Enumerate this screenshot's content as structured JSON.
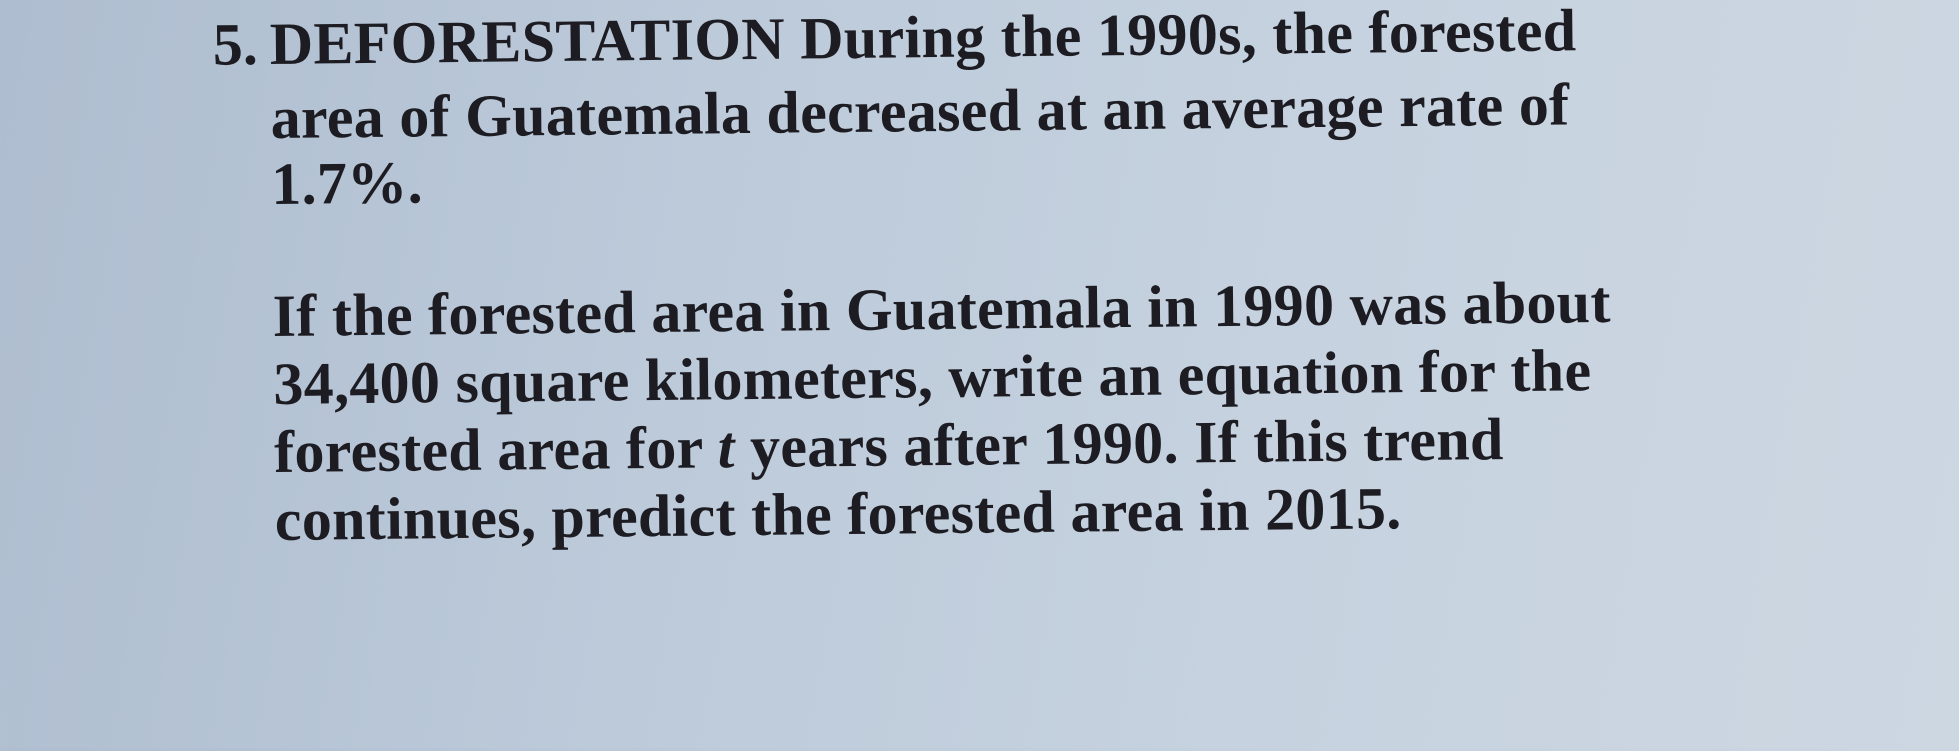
{
  "problem": {
    "number": "5.",
    "title": "DEFORESTATION",
    "intro_lines": [
      "During the 1990s, the forested",
      "area of Guatemala decreased at an average rate of",
      "1.7%."
    ],
    "question_lines": [
      "If the forested area in Guatemala in 1990 was about",
      "34,400 square kilometers, write an equation for the",
      "forested area for",
      "t",
      "years after 1990. If this trend",
      "continues, predict the forested area in 2015."
    ]
  }
}
